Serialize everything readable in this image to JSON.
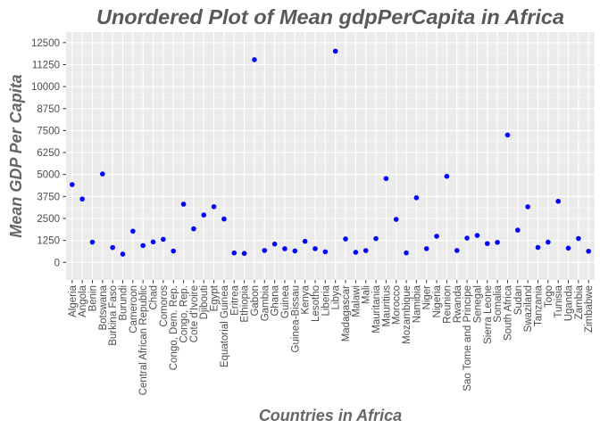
{
  "chart_data": {
    "type": "scatter",
    "title": "Unordered Plot of Mean gdpPerCapita in Africa",
    "xlabel": "Countries in Africa",
    "ylabel": "Mean GDP Per Capita",
    "ylim": [
      -1000,
      13100
    ],
    "yticks": [
      0,
      1250,
      2500,
      3750,
      5000,
      6250,
      7500,
      8750,
      10000,
      11250,
      12500
    ],
    "grid": true,
    "legend": "none",
    "colors": {
      "panel": "#ebebeb",
      "grid_major": "#ffffff",
      "grid_minor": "#f5f5f5",
      "point": "#0000ff",
      "tick": "#4d4d4d"
    },
    "categories": [
      "Algeria",
      "Angola",
      "Benin",
      "Botswana",
      "Burkina Faso",
      "Burundi",
      "Cameroon",
      "Central African Republic",
      "Chad",
      "Comoros",
      "Congo, Dem. Rep.",
      "Congo, Rep.",
      "Cote d'Ivoire",
      "Djibouti",
      "Egypt",
      "Equatorial Guinea",
      "Eritrea",
      "Ethiopia",
      "Gabon",
      "Gambia",
      "Ghana",
      "Guinea",
      "Guinea-Bissau",
      "Kenya",
      "Lesotho",
      "Liberia",
      "Libya",
      "Madagascar",
      "Malawi",
      "Mali",
      "Mauritania",
      "Mauritius",
      "Morocco",
      "Mozambique",
      "Namibia",
      "Niger",
      "Nigeria",
      "Reunion",
      "Rwanda",
      "Sao Tome and Principe",
      "Senegal",
      "Sierra Leone",
      "Somalia",
      "South Africa",
      "Sudan",
      "Swaziland",
      "Tanzania",
      "Togo",
      "Tunisia",
      "Uganda",
      "Zambia",
      "Zimbabwe"
    ],
    "values": [
      4426,
      3607,
      1155,
      5031,
      844,
      472,
      1775,
      959,
      1165,
      1314,
      649,
      3313,
      1912,
      2698,
      3169,
      2469,
      541,
      510,
      11530,
      680,
      1045,
      776,
      652,
      1200,
      780,
      604,
      12014,
      1335,
      576,
      673,
      1356,
      4769,
      2448,
      542,
      3675,
      782,
      1489,
      4898,
      676,
      1383,
      1533,
      1072,
      1140,
      7247,
      1835,
      3163,
      850,
      1153,
      3477,
      810,
      1358,
      636
    ]
  }
}
